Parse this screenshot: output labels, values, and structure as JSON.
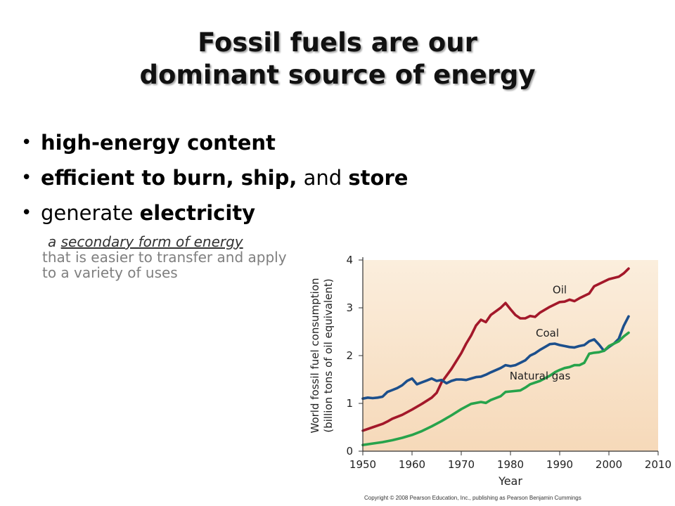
{
  "slide": {
    "title_line1": "Fossil fuels are our",
    "title_line2": "dominant source of energy",
    "bullets": [
      {
        "parts": [
          {
            "text": "high-energy content",
            "bold": true
          }
        ]
      },
      {
        "parts": [
          {
            "text": "efficient to burn, ship,",
            "bold": true
          },
          {
            "text": " and ",
            "bold": false
          },
          {
            "text": "store",
            "bold": true
          }
        ]
      },
      {
        "parts": [
          {
            "text": "generate ",
            "bold": false
          },
          {
            "text": "electricity",
            "bold": true
          }
        ]
      }
    ],
    "sub_lead_prefix": "a ",
    "sub_lead_underlined": "secondary form of energy",
    "sub_rest": "that is easier to transfer and apply to a variety of uses",
    "copyright": "Copyright © 2008 Pearson Education, Inc., publishing as Pearson Benjamin Cummings"
  },
  "chart_data": {
    "type": "line",
    "xlabel": "Year",
    "ylabel_line1": "World fossil fuel consumption",
    "ylabel_line2": "(billion tons of oil equivalent)",
    "xlim": [
      1950,
      2010
    ],
    "ylim": [
      0,
      4
    ],
    "xticks": [
      1950,
      1960,
      1970,
      1980,
      1990,
      2000,
      2010
    ],
    "yticks": [
      0,
      1,
      2,
      3,
      4
    ],
    "grid": false,
    "background_gradient": [
      "#fbeedd",
      "#f6d9b9"
    ],
    "series": [
      {
        "name": "Oil",
        "color": "#a3182a",
        "label_at": [
          1990,
          3.3
        ],
        "points": [
          [
            1950,
            0.43
          ],
          [
            1952,
            0.5
          ],
          [
            1954,
            0.57
          ],
          [
            1955,
            0.62
          ],
          [
            1956,
            0.68
          ],
          [
            1958,
            0.76
          ],
          [
            1960,
            0.87
          ],
          [
            1962,
            0.99
          ],
          [
            1964,
            1.12
          ],
          [
            1965,
            1.22
          ],
          [
            1966,
            1.44
          ],
          [
            1968,
            1.72
          ],
          [
            1970,
            2.05
          ],
          [
            1971,
            2.25
          ],
          [
            1972,
            2.42
          ],
          [
            1973,
            2.63
          ],
          [
            1974,
            2.75
          ],
          [
            1975,
            2.7
          ],
          [
            1976,
            2.85
          ],
          [
            1978,
            3.0
          ],
          [
            1979,
            3.1
          ],
          [
            1980,
            2.97
          ],
          [
            1981,
            2.85
          ],
          [
            1982,
            2.78
          ],
          [
            1983,
            2.78
          ],
          [
            1984,
            2.83
          ],
          [
            1985,
            2.81
          ],
          [
            1986,
            2.9
          ],
          [
            1988,
            3.02
          ],
          [
            1990,
            3.12
          ],
          [
            1991,
            3.13
          ],
          [
            1992,
            3.17
          ],
          [
            1993,
            3.14
          ],
          [
            1994,
            3.2
          ],
          [
            1996,
            3.3
          ],
          [
            1997,
            3.45
          ],
          [
            1998,
            3.5
          ],
          [
            1999,
            3.55
          ],
          [
            2000,
            3.6
          ],
          [
            2002,
            3.65
          ],
          [
            2003,
            3.72
          ],
          [
            2004,
            3.82
          ]
        ]
      },
      {
        "name": "Coal",
        "color": "#1c4f8c",
        "label_at": [
          1987.5,
          2.4
        ],
        "points": [
          [
            1950,
            1.1
          ],
          [
            1951,
            1.12
          ],
          [
            1952,
            1.11
          ],
          [
            1953,
            1.12
          ],
          [
            1954,
            1.14
          ],
          [
            1955,
            1.24
          ],
          [
            1956,
            1.28
          ],
          [
            1957,
            1.32
          ],
          [
            1958,
            1.38
          ],
          [
            1959,
            1.47
          ],
          [
            1960,
            1.52
          ],
          [
            1961,
            1.4
          ],
          [
            1962,
            1.44
          ],
          [
            1963,
            1.48
          ],
          [
            1964,
            1.52
          ],
          [
            1965,
            1.47
          ],
          [
            1966,
            1.49
          ],
          [
            1967,
            1.42
          ],
          [
            1968,
            1.47
          ],
          [
            1969,
            1.5
          ],
          [
            1970,
            1.5
          ],
          [
            1971,
            1.49
          ],
          [
            1972,
            1.52
          ],
          [
            1973,
            1.55
          ],
          [
            1974,
            1.56
          ],
          [
            1975,
            1.6
          ],
          [
            1976,
            1.65
          ],
          [
            1978,
            1.74
          ],
          [
            1979,
            1.8
          ],
          [
            1980,
            1.78
          ],
          [
            1981,
            1.8
          ],
          [
            1982,
            1.85
          ],
          [
            1983,
            1.9
          ],
          [
            1984,
            2.0
          ],
          [
            1985,
            2.05
          ],
          [
            1986,
            2.12
          ],
          [
            1987,
            2.18
          ],
          [
            1988,
            2.24
          ],
          [
            1989,
            2.25
          ],
          [
            1990,
            2.22
          ],
          [
            1991,
            2.2
          ],
          [
            1992,
            2.18
          ],
          [
            1993,
            2.17
          ],
          [
            1994,
            2.2
          ],
          [
            1995,
            2.22
          ],
          [
            1996,
            2.3
          ],
          [
            1997,
            2.34
          ],
          [
            1998,
            2.23
          ],
          [
            1999,
            2.1
          ],
          [
            2000,
            2.18
          ],
          [
            2001,
            2.25
          ],
          [
            2002,
            2.35
          ],
          [
            2003,
            2.62
          ],
          [
            2004,
            2.82
          ]
        ]
      },
      {
        "name": "Natural gas",
        "color": "#27a34b",
        "label_at": [
          1986,
          1.5
        ],
        "points": [
          [
            1950,
            0.13
          ],
          [
            1952,
            0.16
          ],
          [
            1954,
            0.19
          ],
          [
            1956,
            0.23
          ],
          [
            1958,
            0.28
          ],
          [
            1960,
            0.34
          ],
          [
            1962,
            0.42
          ],
          [
            1964,
            0.52
          ],
          [
            1966,
            0.63
          ],
          [
            1968,
            0.75
          ],
          [
            1970,
            0.88
          ],
          [
            1972,
            0.99
          ],
          [
            1974,
            1.03
          ],
          [
            1975,
            1.01
          ],
          [
            1976,
            1.07
          ],
          [
            1978,
            1.15
          ],
          [
            1979,
            1.24
          ],
          [
            1980,
            1.25
          ],
          [
            1982,
            1.27
          ],
          [
            1983,
            1.33
          ],
          [
            1984,
            1.4
          ],
          [
            1986,
            1.47
          ],
          [
            1988,
            1.58
          ],
          [
            1989,
            1.65
          ],
          [
            1990,
            1.7
          ],
          [
            1991,
            1.74
          ],
          [
            1992,
            1.76
          ],
          [
            1993,
            1.8
          ],
          [
            1994,
            1.8
          ],
          [
            1995,
            1.85
          ],
          [
            1996,
            2.04
          ],
          [
            1997,
            2.06
          ],
          [
            1998,
            2.07
          ],
          [
            1999,
            2.1
          ],
          [
            2000,
            2.2
          ],
          [
            2002,
            2.3
          ],
          [
            2003,
            2.4
          ],
          [
            2004,
            2.48
          ]
        ]
      }
    ]
  }
}
